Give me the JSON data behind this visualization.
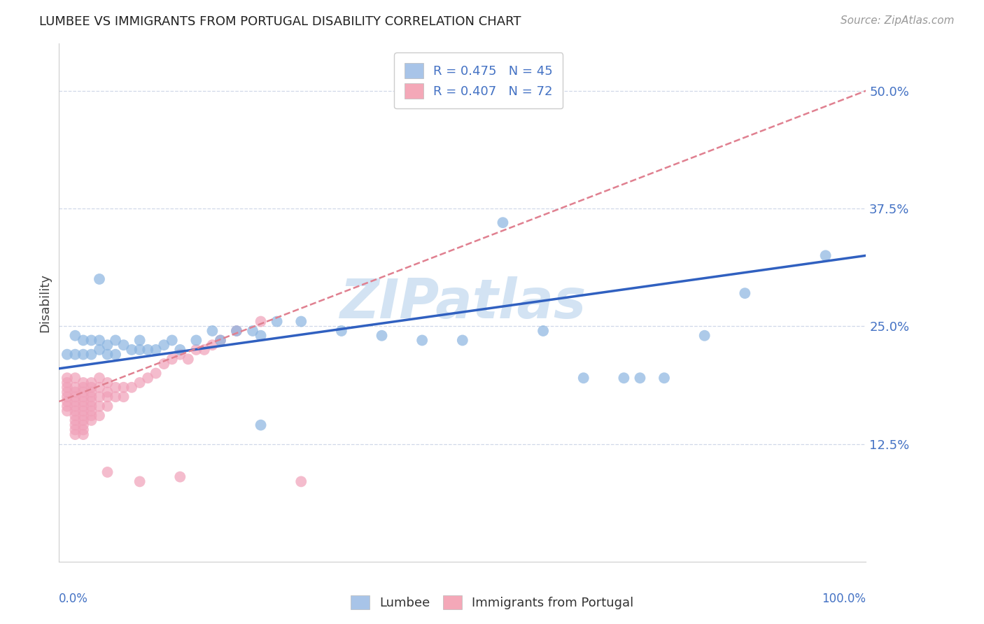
{
  "title": "LUMBEE VS IMMIGRANTS FROM PORTUGAL DISABILITY CORRELATION CHART",
  "source": "Source: ZipAtlas.com",
  "ylabel": "Disability",
  "yticks": [
    0.0,
    0.125,
    0.25,
    0.375,
    0.5
  ],
  "ytick_labels": [
    "",
    "12.5%",
    "25.0%",
    "37.5%",
    "50.0%"
  ],
  "xlim": [
    0.0,
    1.0
  ],
  "ylim": [
    0.0,
    0.55
  ],
  "legend_entries": [
    {
      "label": "R = 0.475   N = 45",
      "color": "#a8c4e8"
    },
    {
      "label": "R = 0.407   N = 72",
      "color": "#f4a8b8"
    }
  ],
  "lumbee_color": "#8ab4e0",
  "portugal_color": "#f0a0b8",
  "lumbee_line_color": "#3060c0",
  "portugal_line_color": "#e08090",
  "watermark_color": "#c8ddf0",
  "background_color": "#ffffff",
  "grid_color": "#d0d8e8",
  "lumbee_line": {
    "x0": 0.0,
    "y0": 0.205,
    "x1": 1.0,
    "y1": 0.325
  },
  "portugal_line": {
    "x0": 0.0,
    "y0": 0.17,
    "x1": 1.0,
    "y1": 0.5
  },
  "lumbee_scatter": [
    [
      0.01,
      0.22
    ],
    [
      0.02,
      0.24
    ],
    [
      0.02,
      0.22
    ],
    [
      0.03,
      0.235
    ],
    [
      0.03,
      0.22
    ],
    [
      0.04,
      0.235
    ],
    [
      0.04,
      0.22
    ],
    [
      0.05,
      0.235
    ],
    [
      0.05,
      0.225
    ],
    [
      0.06,
      0.23
    ],
    [
      0.06,
      0.22
    ],
    [
      0.07,
      0.235
    ],
    [
      0.07,
      0.22
    ],
    [
      0.08,
      0.23
    ],
    [
      0.09,
      0.225
    ],
    [
      0.1,
      0.225
    ],
    [
      0.1,
      0.235
    ],
    [
      0.11,
      0.225
    ],
    [
      0.12,
      0.225
    ],
    [
      0.13,
      0.23
    ],
    [
      0.05,
      0.3
    ],
    [
      0.14,
      0.235
    ],
    [
      0.15,
      0.225
    ],
    [
      0.17,
      0.235
    ],
    [
      0.19,
      0.245
    ],
    [
      0.2,
      0.235
    ],
    [
      0.22,
      0.245
    ],
    [
      0.24,
      0.245
    ],
    [
      0.25,
      0.24
    ],
    [
      0.27,
      0.255
    ],
    [
      0.3,
      0.255
    ],
    [
      0.35,
      0.245
    ],
    [
      0.4,
      0.24
    ],
    [
      0.45,
      0.235
    ],
    [
      0.5,
      0.235
    ],
    [
      0.55,
      0.36
    ],
    [
      0.6,
      0.245
    ],
    [
      0.65,
      0.195
    ],
    [
      0.7,
      0.195
    ],
    [
      0.72,
      0.195
    ],
    [
      0.75,
      0.195
    ],
    [
      0.8,
      0.24
    ],
    [
      0.85,
      0.285
    ],
    [
      0.95,
      0.325
    ],
    [
      0.25,
      0.145
    ]
  ],
  "portugal_scatter": [
    [
      0.01,
      0.195
    ],
    [
      0.01,
      0.19
    ],
    [
      0.01,
      0.185
    ],
    [
      0.01,
      0.18
    ],
    [
      0.01,
      0.175
    ],
    [
      0.01,
      0.17
    ],
    [
      0.01,
      0.165
    ],
    [
      0.01,
      0.16
    ],
    [
      0.02,
      0.195
    ],
    [
      0.02,
      0.185
    ],
    [
      0.02,
      0.18
    ],
    [
      0.02,
      0.175
    ],
    [
      0.02,
      0.17
    ],
    [
      0.02,
      0.165
    ],
    [
      0.02,
      0.16
    ],
    [
      0.02,
      0.155
    ],
    [
      0.02,
      0.15
    ],
    [
      0.02,
      0.145
    ],
    [
      0.02,
      0.14
    ],
    [
      0.02,
      0.135
    ],
    [
      0.03,
      0.19
    ],
    [
      0.03,
      0.185
    ],
    [
      0.03,
      0.18
    ],
    [
      0.03,
      0.175
    ],
    [
      0.03,
      0.17
    ],
    [
      0.03,
      0.165
    ],
    [
      0.03,
      0.16
    ],
    [
      0.03,
      0.155
    ],
    [
      0.03,
      0.15
    ],
    [
      0.03,
      0.145
    ],
    [
      0.03,
      0.14
    ],
    [
      0.03,
      0.135
    ],
    [
      0.04,
      0.19
    ],
    [
      0.04,
      0.185
    ],
    [
      0.04,
      0.18
    ],
    [
      0.04,
      0.175
    ],
    [
      0.04,
      0.17
    ],
    [
      0.04,
      0.165
    ],
    [
      0.04,
      0.16
    ],
    [
      0.04,
      0.155
    ],
    [
      0.04,
      0.15
    ],
    [
      0.05,
      0.195
    ],
    [
      0.05,
      0.185
    ],
    [
      0.05,
      0.175
    ],
    [
      0.05,
      0.165
    ],
    [
      0.05,
      0.155
    ],
    [
      0.06,
      0.19
    ],
    [
      0.06,
      0.18
    ],
    [
      0.06,
      0.175
    ],
    [
      0.06,
      0.165
    ],
    [
      0.07,
      0.185
    ],
    [
      0.07,
      0.175
    ],
    [
      0.08,
      0.185
    ],
    [
      0.08,
      0.175
    ],
    [
      0.09,
      0.185
    ],
    [
      0.1,
      0.19
    ],
    [
      0.11,
      0.195
    ],
    [
      0.12,
      0.2
    ],
    [
      0.13,
      0.21
    ],
    [
      0.14,
      0.215
    ],
    [
      0.15,
      0.22
    ],
    [
      0.16,
      0.215
    ],
    [
      0.17,
      0.225
    ],
    [
      0.18,
      0.225
    ],
    [
      0.19,
      0.23
    ],
    [
      0.2,
      0.235
    ],
    [
      0.22,
      0.245
    ],
    [
      0.25,
      0.255
    ],
    [
      0.06,
      0.095
    ],
    [
      0.1,
      0.085
    ],
    [
      0.15,
      0.09
    ],
    [
      0.3,
      0.085
    ]
  ]
}
